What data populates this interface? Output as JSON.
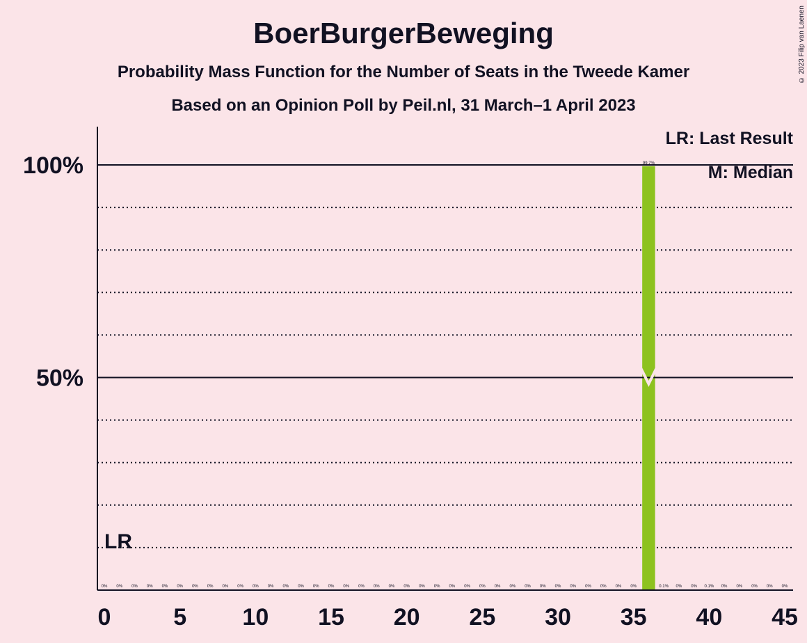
{
  "header": {
    "title": "BoerBurgerBeweging",
    "subtitle": "Probability Mass Function for the Number of Seats in the Tweede Kamer",
    "subtitle2": "Based on an Opinion Poll by Peil.nl, 31 March–1 April 2023",
    "copyright": "© 2023 Filip van Laenen"
  },
  "legend": {
    "last_result": "LR: Last Result",
    "median": "M: Median"
  },
  "chart_data": {
    "type": "bar",
    "x": [
      0,
      1,
      2,
      3,
      4,
      5,
      6,
      7,
      8,
      9,
      10,
      11,
      12,
      13,
      14,
      15,
      16,
      17,
      18,
      19,
      20,
      21,
      22,
      23,
      24,
      25,
      26,
      27,
      28,
      29,
      30,
      31,
      32,
      33,
      34,
      35,
      36,
      37,
      38,
      39,
      40,
      41,
      42,
      43,
      44,
      45
    ],
    "values": [
      0,
      0,
      0,
      0,
      0,
      0,
      0,
      0,
      0,
      0,
      0,
      0,
      0,
      0,
      0,
      0,
      0,
      0,
      0,
      0,
      0,
      0,
      0,
      0,
      0,
      0,
      0,
      0,
      0,
      0,
      0,
      0,
      0,
      0,
      0,
      0,
      99.7,
      0.1,
      0,
      0,
      0.1,
      0,
      0,
      0,
      0,
      0
    ],
    "bar_labels": [
      "0%",
      "0%",
      "0%",
      "0%",
      "0%",
      "0%",
      "0%",
      "0%",
      "0%",
      "0%",
      "0%",
      "0%",
      "0%",
      "0%",
      "0%",
      "0%",
      "0%",
      "0%",
      "0%",
      "0%",
      "0%",
      "0%",
      "0%",
      "0%",
      "0%",
      "0%",
      "0%",
      "0%",
      "0%",
      "0%",
      "0%",
      "0%",
      "0%",
      "0%",
      "0%",
      "0%",
      "99.7%",
      "0.1%",
      "0%",
      "0%",
      "0.1%",
      "0%",
      "0%",
      "0%",
      "0%",
      "0%"
    ],
    "xticks": [
      0,
      5,
      10,
      15,
      20,
      25,
      30,
      35,
      40,
      45
    ],
    "xlim": [
      0,
      45
    ],
    "ylim": [
      0,
      110
    ],
    "yticks": [
      {
        "value": 50,
        "label": "50%"
      },
      {
        "value": 100,
        "label": "100%"
      }
    ],
    "dotted_gridlines": [
      10,
      20,
      30,
      40,
      60,
      70,
      80,
      90
    ],
    "last_result_seat": 0,
    "last_result_label": "LR",
    "median_seat": 36,
    "bar_color": "#8dc21f",
    "background": "#fbe4e8",
    "ink": "#111122"
  }
}
